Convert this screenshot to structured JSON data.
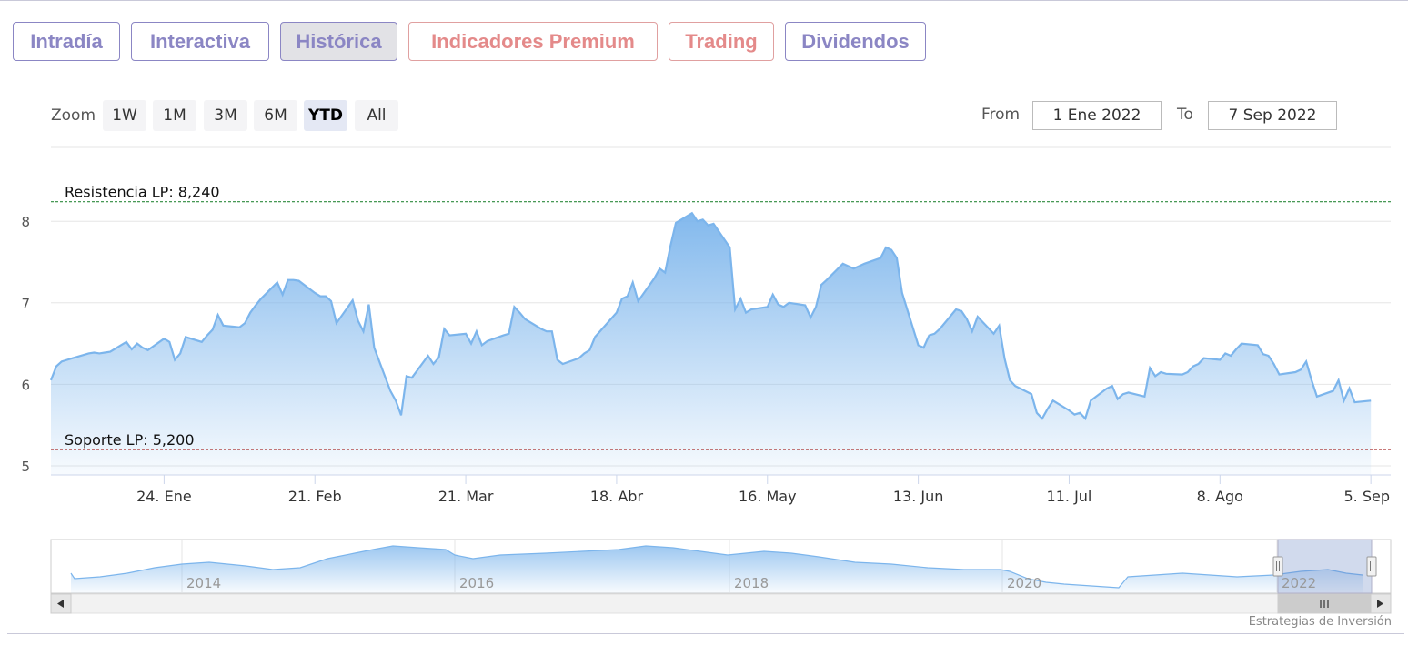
{
  "tabs": [
    {
      "label": "Intradía",
      "style": "violet"
    },
    {
      "label": "Interactiva",
      "style": "violet"
    },
    {
      "label": "Histórica",
      "style": "violet active"
    },
    {
      "label": "Indicadores Premium",
      "style": "salmon"
    },
    {
      "label": "Trading",
      "style": "salmon"
    },
    {
      "label": "Dividendos",
      "style": "violet"
    }
  ],
  "zoom": {
    "label": "Zoom",
    "buttons": [
      "1W",
      "1M",
      "3M",
      "6M",
      "YTD",
      "All"
    ],
    "selected": "YTD"
  },
  "range": {
    "from_label": "From",
    "from_value": "1 Ene 2022",
    "to_label": "To",
    "to_value": "7 Sep 2022"
  },
  "chart_data": {
    "type": "area",
    "title": "",
    "xlabel": "",
    "ylabel": "",
    "y_ticks": [
      5,
      6,
      7,
      8
    ],
    "ylim": [
      4.9,
      8.3
    ],
    "xlim": [
      "2022-01-03",
      "2022-09-07"
    ],
    "x_tick_labels": [
      {
        "date": "2022-01-24",
        "label": "24. Ene"
      },
      {
        "date": "2022-02-21",
        "label": "21. Feb"
      },
      {
        "date": "2022-03-21",
        "label": "21. Mar"
      },
      {
        "date": "2022-04-18",
        "label": "18. Abr"
      },
      {
        "date": "2022-05-16",
        "label": "16. May"
      },
      {
        "date": "2022-06-13",
        "label": "13. Jun"
      },
      {
        "date": "2022-07-11",
        "label": "11. Jul"
      },
      {
        "date": "2022-08-08",
        "label": "8. Ago"
      },
      {
        "date": "2022-09-05",
        "label": "5. Sep"
      }
    ],
    "series": [
      {
        "color": "#7cb5ec",
        "data": [
          [
            "2022-01-03",
            6.05
          ],
          [
            "2022-01-04",
            6.22
          ],
          [
            "2022-01-05",
            6.28
          ],
          [
            "2022-01-06",
            6.3
          ],
          [
            "2022-01-07",
            6.32
          ],
          [
            "2022-01-10",
            6.38
          ],
          [
            "2022-01-11",
            6.39
          ],
          [
            "2022-01-12",
            6.38
          ],
          [
            "2022-01-13",
            6.39
          ],
          [
            "2022-01-14",
            6.4
          ],
          [
            "2022-01-17",
            6.52
          ],
          [
            "2022-01-18",
            6.43
          ],
          [
            "2022-01-19",
            6.5
          ],
          [
            "2022-01-20",
            6.45
          ],
          [
            "2022-01-21",
            6.42
          ],
          [
            "2022-01-24",
            6.56
          ],
          [
            "2022-01-25",
            6.52
          ],
          [
            "2022-01-26",
            6.3
          ],
          [
            "2022-01-27",
            6.38
          ],
          [
            "2022-01-28",
            6.58
          ],
          [
            "2022-01-31",
            6.52
          ],
          [
            "2022-02-01",
            6.6
          ],
          [
            "2022-02-02",
            6.67
          ],
          [
            "2022-02-03",
            6.85
          ],
          [
            "2022-02-04",
            6.72
          ],
          [
            "2022-02-07",
            6.7
          ],
          [
            "2022-02-08",
            6.75
          ],
          [
            "2022-02-09",
            6.88
          ],
          [
            "2022-02-10",
            6.97
          ],
          [
            "2022-02-11",
            7.05
          ],
          [
            "2022-02-14",
            7.25
          ],
          [
            "2022-02-15",
            7.1
          ],
          [
            "2022-02-16",
            7.28
          ],
          [
            "2022-02-17",
            7.28
          ],
          [
            "2022-02-18",
            7.27
          ],
          [
            "2022-02-21",
            7.12
          ],
          [
            "2022-02-22",
            7.08
          ],
          [
            "2022-02-23",
            7.08
          ],
          [
            "2022-02-24",
            7.02
          ],
          [
            "2022-02-25",
            6.75
          ],
          [
            "2022-02-28",
            7.03
          ],
          [
            "2022-03-01",
            6.78
          ],
          [
            "2022-03-02",
            6.65
          ],
          [
            "2022-03-03",
            6.98
          ],
          [
            "2022-03-04",
            6.45
          ],
          [
            "2022-03-07",
            5.92
          ],
          [
            "2022-03-08",
            5.8
          ],
          [
            "2022-03-09",
            5.62
          ],
          [
            "2022-03-10",
            6.1
          ],
          [
            "2022-03-11",
            6.08
          ],
          [
            "2022-03-14",
            6.35
          ],
          [
            "2022-03-15",
            6.25
          ],
          [
            "2022-03-16",
            6.33
          ],
          [
            "2022-03-17",
            6.68
          ],
          [
            "2022-03-18",
            6.6
          ],
          [
            "2022-03-21",
            6.62
          ],
          [
            "2022-03-22",
            6.5
          ],
          [
            "2022-03-23",
            6.65
          ],
          [
            "2022-03-24",
            6.48
          ],
          [
            "2022-03-25",
            6.53
          ],
          [
            "2022-03-28",
            6.6
          ],
          [
            "2022-03-29",
            6.62
          ],
          [
            "2022-03-30",
            6.95
          ],
          [
            "2022-03-31",
            6.88
          ],
          [
            "2022-04-01",
            6.8
          ],
          [
            "2022-04-04",
            6.68
          ],
          [
            "2022-04-05",
            6.65
          ],
          [
            "2022-04-06",
            6.65
          ],
          [
            "2022-04-07",
            6.3
          ],
          [
            "2022-04-08",
            6.25
          ],
          [
            "2022-04-11",
            6.32
          ],
          [
            "2022-04-12",
            6.38
          ],
          [
            "2022-04-13",
            6.42
          ],
          [
            "2022-04-14",
            6.58
          ],
          [
            "2022-04-18",
            6.88
          ],
          [
            "2022-04-19",
            7.05
          ],
          [
            "2022-04-20",
            7.08
          ],
          [
            "2022-04-21",
            7.25
          ],
          [
            "2022-04-22",
            7.02
          ],
          [
            "2022-04-25",
            7.3
          ],
          [
            "2022-04-26",
            7.42
          ],
          [
            "2022-04-27",
            7.37
          ],
          [
            "2022-04-28",
            7.7
          ],
          [
            "2022-04-29",
            7.98
          ],
          [
            "2022-05-02",
            8.1
          ],
          [
            "2022-05-03",
            8.0
          ],
          [
            "2022-05-04",
            8.02
          ],
          [
            "2022-05-05",
            7.95
          ],
          [
            "2022-05-06",
            7.97
          ],
          [
            "2022-05-09",
            7.68
          ],
          [
            "2022-05-10",
            6.92
          ],
          [
            "2022-05-11",
            7.05
          ],
          [
            "2022-05-12",
            6.88
          ],
          [
            "2022-05-13",
            6.92
          ],
          [
            "2022-05-16",
            6.95
          ],
          [
            "2022-05-17",
            7.1
          ],
          [
            "2022-05-18",
            6.98
          ],
          [
            "2022-05-19",
            6.95
          ],
          [
            "2022-05-20",
            7.0
          ],
          [
            "2022-05-23",
            6.97
          ],
          [
            "2022-05-24",
            6.82
          ],
          [
            "2022-05-25",
            6.95
          ],
          [
            "2022-05-26",
            7.22
          ],
          [
            "2022-05-27",
            7.28
          ],
          [
            "2022-05-30",
            7.48
          ],
          [
            "2022-05-31",
            7.45
          ],
          [
            "2022-06-01",
            7.42
          ],
          [
            "2022-06-02",
            7.45
          ],
          [
            "2022-06-03",
            7.48
          ],
          [
            "2022-06-06",
            7.55
          ],
          [
            "2022-06-07",
            7.68
          ],
          [
            "2022-06-08",
            7.65
          ],
          [
            "2022-06-09",
            7.55
          ],
          [
            "2022-06-10",
            7.12
          ],
          [
            "2022-06-13",
            6.48
          ],
          [
            "2022-06-14",
            6.45
          ],
          [
            "2022-06-15",
            6.6
          ],
          [
            "2022-06-16",
            6.62
          ],
          [
            "2022-06-17",
            6.68
          ],
          [
            "2022-06-20",
            6.92
          ],
          [
            "2022-06-21",
            6.9
          ],
          [
            "2022-06-22",
            6.8
          ],
          [
            "2022-06-23",
            6.65
          ],
          [
            "2022-06-24",
            6.83
          ],
          [
            "2022-06-27",
            6.62
          ],
          [
            "2022-06-28",
            6.72
          ],
          [
            "2022-06-29",
            6.32
          ],
          [
            "2022-06-30",
            6.05
          ],
          [
            "2022-07-01",
            5.98
          ],
          [
            "2022-07-04",
            5.88
          ],
          [
            "2022-07-05",
            5.65
          ],
          [
            "2022-07-06",
            5.58
          ],
          [
            "2022-07-07",
            5.7
          ],
          [
            "2022-07-08",
            5.8
          ],
          [
            "2022-07-11",
            5.68
          ],
          [
            "2022-07-12",
            5.63
          ],
          [
            "2022-07-13",
            5.65
          ],
          [
            "2022-07-14",
            5.58
          ],
          [
            "2022-07-15",
            5.8
          ],
          [
            "2022-07-18",
            5.95
          ],
          [
            "2022-07-19",
            5.98
          ],
          [
            "2022-07-20",
            5.82
          ],
          [
            "2022-07-21",
            5.88
          ],
          [
            "2022-07-22",
            5.9
          ],
          [
            "2022-07-25",
            5.85
          ],
          [
            "2022-07-26",
            6.2
          ],
          [
            "2022-07-27",
            6.1
          ],
          [
            "2022-07-28",
            6.15
          ],
          [
            "2022-07-29",
            6.13
          ],
          [
            "2022-08-01",
            6.12
          ],
          [
            "2022-08-02",
            6.15
          ],
          [
            "2022-08-03",
            6.22
          ],
          [
            "2022-08-04",
            6.25
          ],
          [
            "2022-08-05",
            6.32
          ],
          [
            "2022-08-08",
            6.3
          ],
          [
            "2022-08-09",
            6.38
          ],
          [
            "2022-08-10",
            6.35
          ],
          [
            "2022-08-11",
            6.43
          ],
          [
            "2022-08-12",
            6.5
          ],
          [
            "2022-08-15",
            6.48
          ],
          [
            "2022-08-16",
            6.37
          ],
          [
            "2022-08-17",
            6.35
          ],
          [
            "2022-08-18",
            6.25
          ],
          [
            "2022-08-19",
            6.12
          ],
          [
            "2022-08-22",
            6.15
          ],
          [
            "2022-08-23",
            6.18
          ],
          [
            "2022-08-24",
            6.28
          ],
          [
            "2022-08-25",
            6.05
          ],
          [
            "2022-08-26",
            5.85
          ],
          [
            "2022-08-29",
            5.92
          ],
          [
            "2022-08-30",
            6.05
          ],
          [
            "2022-08-31",
            5.8
          ],
          [
            "2022-09-01",
            5.95
          ],
          [
            "2022-09-02",
            5.78
          ],
          [
            "2022-09-05",
            5.8
          ]
        ]
      }
    ],
    "plot_lines": [
      {
        "value": 8.24,
        "label": "Resistencia LP: 8,240",
        "color": "#2e8b3e"
      },
      {
        "value": 5.2,
        "label": "Soporte LP: 5,200",
        "color": "#a82a2a"
      }
    ],
    "navigator": {
      "year_labels": [
        "2014",
        "2016",
        "2018",
        "2020",
        "2022"
      ],
      "selected_range": [
        "2022-01-01",
        "2022-09-07"
      ]
    },
    "grid": true,
    "legend": "none"
  },
  "credits": "Estrategias de Inversión"
}
